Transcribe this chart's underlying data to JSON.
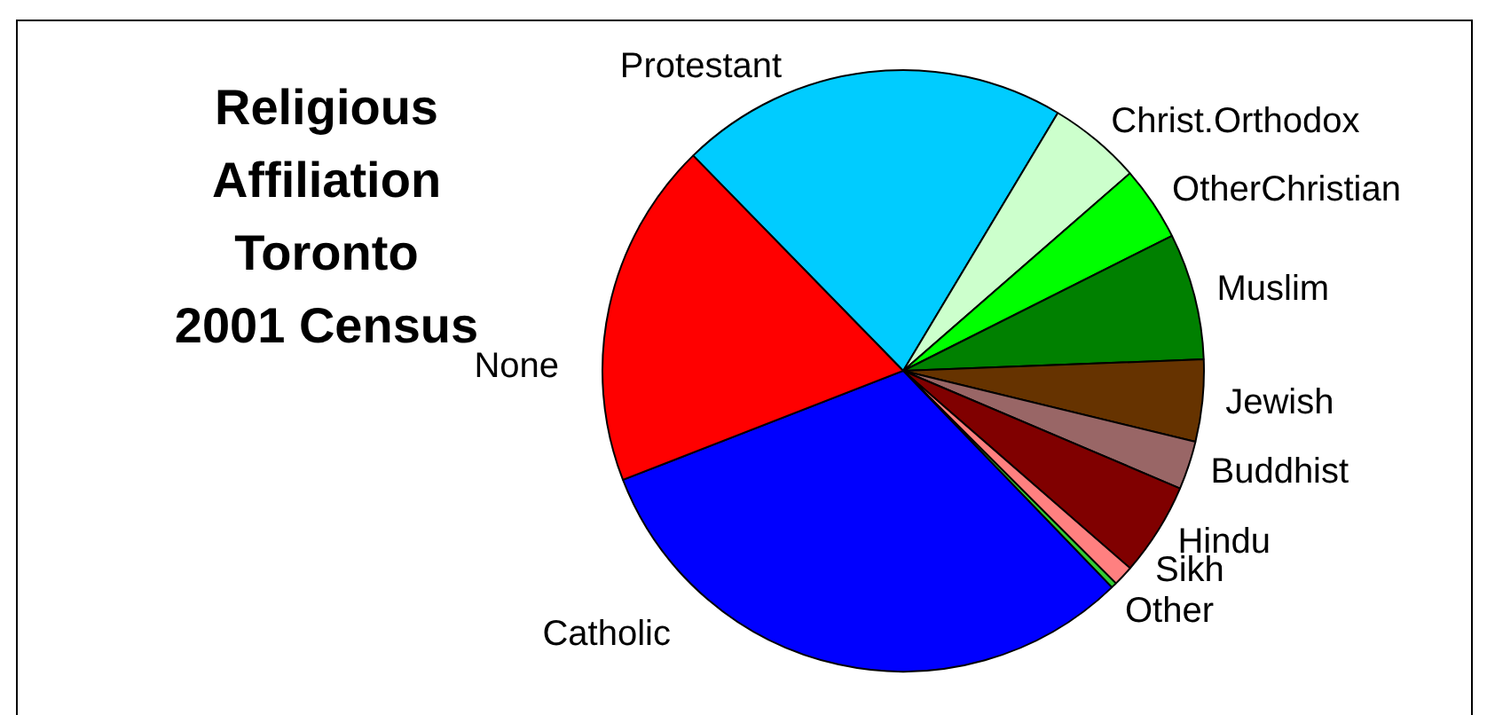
{
  "chart_data": {
    "type": "pie",
    "title": "Religious\nAffiliation\nToronto\n2001 Census",
    "categories": [
      "Protestant",
      "Christ.Orthodox",
      "OtherChristian",
      "Muslim",
      "Jewish",
      "Buddhist",
      "Hindu",
      "Sikh",
      "Other",
      "Catholic",
      "None"
    ],
    "values": [
      20.9,
      5.0,
      4.0,
      6.8,
      4.4,
      2.6,
      5.0,
      1.1,
      0.3,
      31.3,
      18.6
    ],
    "colors": [
      "#00ccff",
      "#ccffcc",
      "#00ff00",
      "#008000",
      "#663300",
      "#996666",
      "#800000",
      "#ff8080",
      "#33cc33",
      "#0000ff",
      "#ff0000"
    ]
  }
}
